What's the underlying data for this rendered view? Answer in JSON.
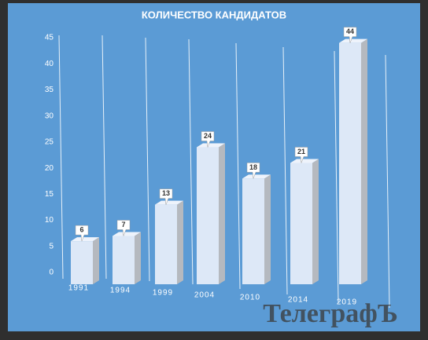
{
  "chart_data": {
    "type": "bar",
    "title": "КОЛИЧЕСТВО КАНДИДАТОВ",
    "categories": [
      "1991",
      "1994",
      "1999",
      "2004",
      "2010",
      "2014",
      "2019"
    ],
    "values": [
      6,
      7,
      13,
      24,
      18,
      21,
      44
    ],
    "color": "#dde8f7",
    "ylim": [
      0,
      45
    ],
    "yticks": [
      0,
      5,
      10,
      15,
      20,
      25,
      30,
      35,
      40,
      45
    ]
  },
  "watermark": "ТелеграфЪ"
}
